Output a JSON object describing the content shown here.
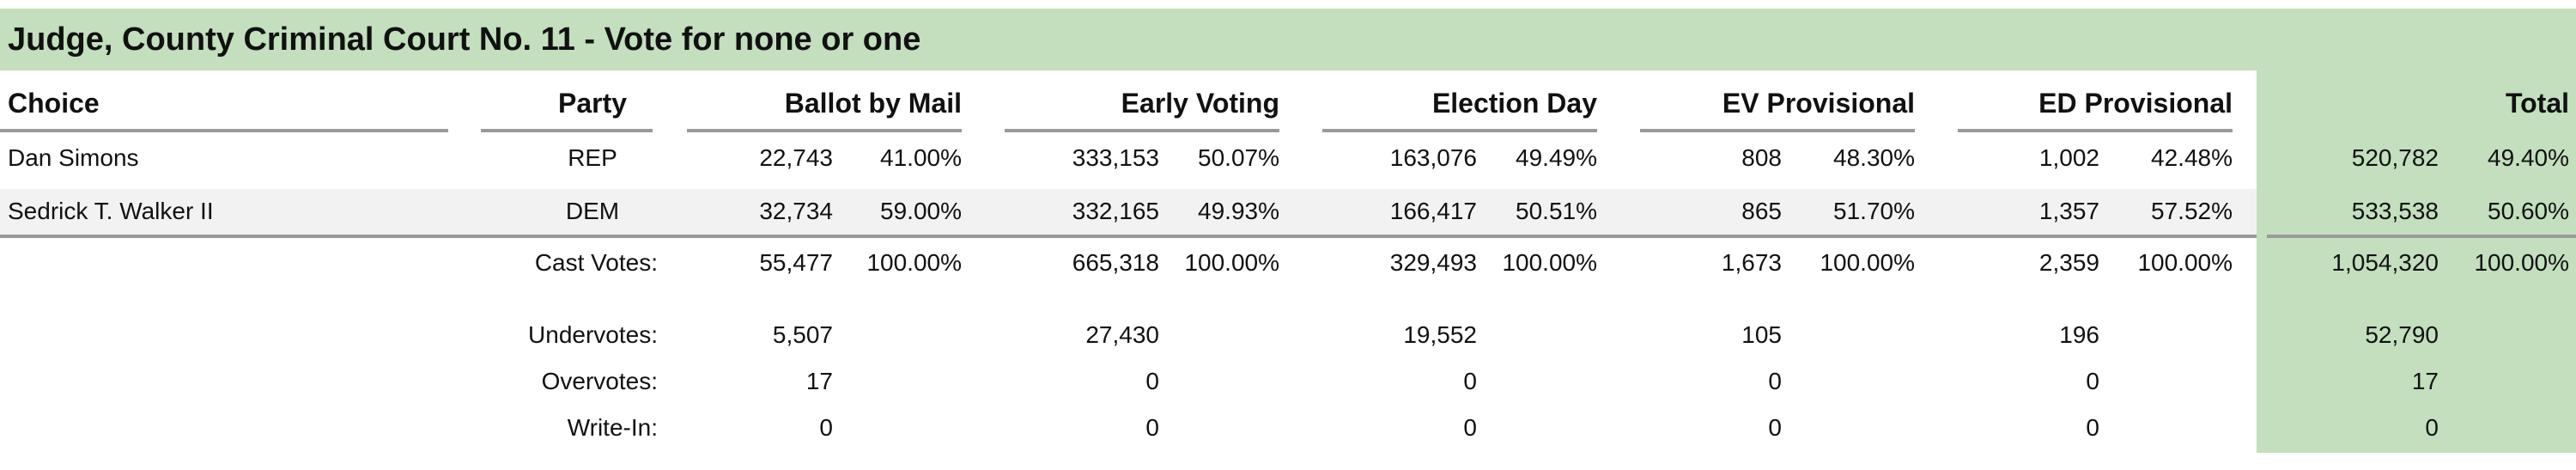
{
  "title": "Judge, County Criminal Court No. 11 - Vote for none or one",
  "headers": {
    "choice": "Choice",
    "party": "Party",
    "ballot_by_mail": "Ballot by Mail",
    "early_voting": "Early Voting",
    "election_day": "Election Day",
    "ev_provisional": "EV Provisional",
    "ed_provisional": "ED Provisional",
    "total": "Total"
  },
  "candidates": [
    {
      "choice": "Dan Simons",
      "party": "REP",
      "mail_votes": "22,743",
      "mail_pct": "41.00%",
      "ev_votes": "333,153",
      "ev_pct": "50.07%",
      "ed_votes": "163,076",
      "ed_pct": "49.49%",
      "evp_votes": "808",
      "evp_pct": "48.30%",
      "edp_votes": "1,002",
      "edp_pct": "42.48%",
      "total_votes": "520,782",
      "total_pct": "49.40%"
    },
    {
      "choice": "Sedrick T. Walker II",
      "party": "DEM",
      "mail_votes": "32,734",
      "mail_pct": "59.00%",
      "ev_votes": "332,165",
      "ev_pct": "49.93%",
      "ed_votes": "166,417",
      "ed_pct": "50.51%",
      "evp_votes": "865",
      "evp_pct": "51.70%",
      "edp_votes": "1,357",
      "edp_pct": "57.52%",
      "total_votes": "533,538",
      "total_pct": "50.60%"
    }
  ],
  "cast_votes": {
    "label": "Cast Votes:",
    "mail_votes": "55,477",
    "mail_pct": "100.00%",
    "ev_votes": "665,318",
    "ev_pct": "100.00%",
    "ed_votes": "329,493",
    "ed_pct": "100.00%",
    "evp_votes": "1,673",
    "evp_pct": "100.00%",
    "edp_votes": "2,359",
    "edp_pct": "100.00%",
    "total_votes": "1,054,320",
    "total_pct": "100.00%"
  },
  "summary_rows": [
    {
      "label": "Undervotes:",
      "mail": "5,507",
      "ev": "27,430",
      "ed": "19,552",
      "evp": "105",
      "edp": "196",
      "total": "52,790"
    },
    {
      "label": "Overvotes:",
      "mail": "17",
      "ev": "0",
      "ed": "0",
      "evp": "0",
      "edp": "0",
      "total": "17"
    },
    {
      "label": "Write-In:",
      "mail": "0",
      "ev": "0",
      "ed": "0",
      "evp": "0",
      "edp": "0",
      "total": "0"
    }
  ],
  "colors": {
    "accent_green": "#c3dfbe",
    "row_alt": "#f2f2f2",
    "rule": "#9a9a9a"
  }
}
